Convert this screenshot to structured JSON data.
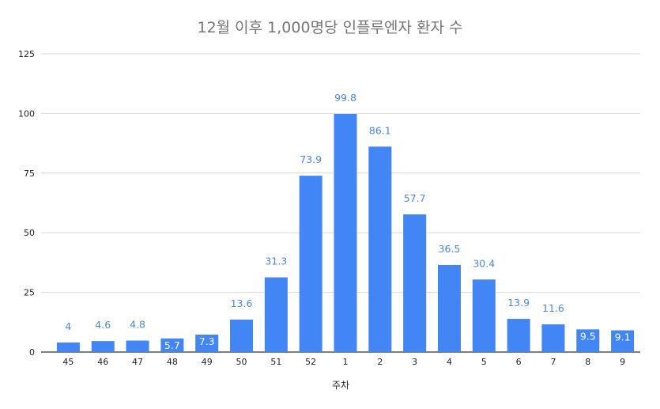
{
  "chart_data": {
    "type": "bar",
    "title": "12월 이후 1,000명당 인플루엔자 환자 수",
    "xlabel": "주차",
    "ylabel": "",
    "ylim": [
      0,
      125
    ],
    "yticks": [
      0,
      25,
      50,
      75,
      100,
      125
    ],
    "grid": true,
    "legend": "none",
    "categories": [
      "45",
      "46",
      "47",
      "48",
      "49",
      "50",
      "51",
      "52",
      "1",
      "2",
      "3",
      "4",
      "5",
      "6",
      "7",
      "8",
      "9"
    ],
    "values": [
      4,
      4.6,
      4.8,
      5.7,
      7.3,
      13.6,
      31.3,
      73.9,
      99.8,
      86.1,
      57.7,
      36.5,
      30.4,
      13.9,
      11.6,
      9.5,
      9.1
    ],
    "data_labels": [
      "4",
      "4.6",
      "4.8",
      "5.7",
      "7.3",
      "13.6",
      "31.3",
      "73.9",
      "99.8",
      "86.1",
      "57.7",
      "36.5",
      "30.4",
      "13.9",
      "11.6",
      "9.5",
      "9.1"
    ],
    "colors": {
      "bar": "#4285f4",
      "label_outside": "#4a86e8",
      "label_inside": "#ffffff",
      "grid": "#d9d9d9",
      "axis": "#333333",
      "title": "#757575"
    }
  }
}
